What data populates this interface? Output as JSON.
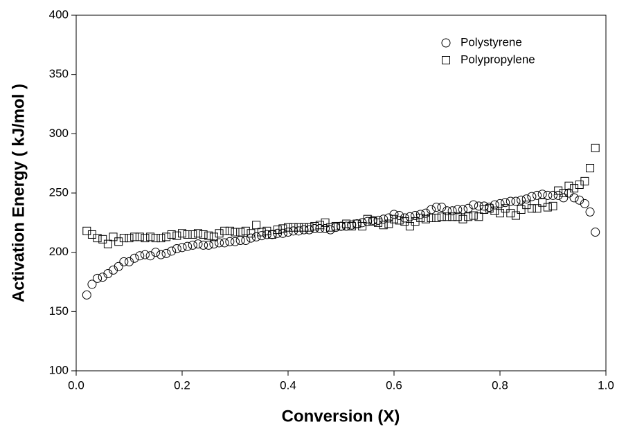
{
  "chart_data": {
    "type": "scatter",
    "x_label": "Conversion (X)",
    "y_label": "Activation Energy ( kJ/mol )",
    "x": [
      0.02,
      0.03,
      0.04,
      0.05,
      0.06,
      0.07,
      0.08,
      0.09,
      0.1,
      0.11,
      0.12,
      0.13,
      0.14,
      0.15,
      0.16,
      0.17,
      0.18,
      0.19,
      0.2,
      0.21,
      0.22,
      0.23,
      0.24,
      0.25,
      0.26,
      0.27,
      0.28,
      0.29,
      0.3,
      0.31,
      0.32,
      0.33,
      0.34,
      0.35,
      0.36,
      0.37,
      0.38,
      0.39,
      0.4,
      0.41,
      0.42,
      0.43,
      0.44,
      0.45,
      0.46,
      0.47,
      0.48,
      0.49,
      0.5,
      0.51,
      0.52,
      0.53,
      0.54,
      0.55,
      0.56,
      0.57,
      0.58,
      0.59,
      0.6,
      0.61,
      0.62,
      0.63,
      0.64,
      0.65,
      0.66,
      0.67,
      0.68,
      0.69,
      0.7,
      0.71,
      0.72,
      0.73,
      0.74,
      0.75,
      0.76,
      0.77,
      0.78,
      0.79,
      0.8,
      0.81,
      0.82,
      0.83,
      0.84,
      0.85,
      0.86,
      0.87,
      0.88,
      0.89,
      0.9,
      0.91,
      0.92,
      0.93,
      0.94,
      0.95,
      0.96,
      0.97,
      0.98
    ],
    "series": [
      {
        "name": "Polystyrene",
        "marker": "circle",
        "color": "#000000",
        "values": [
          164,
          173,
          178,
          179,
          182,
          185,
          188,
          192,
          192,
          195,
          197,
          198,
          197,
          200,
          198,
          199,
          201,
          203,
          204,
          205,
          206,
          207,
          206,
          206,
          207,
          208,
          208,
          209,
          209,
          210,
          210,
          212,
          213,
          214,
          215,
          215,
          216,
          216,
          217,
          218,
          218,
          219,
          219,
          220,
          220,
          220,
          219,
          221,
          222,
          222,
          223,
          224,
          225,
          226,
          227,
          227,
          228,
          229,
          232,
          231,
          229,
          230,
          231,
          232,
          233,
          236,
          238,
          238,
          235,
          235,
          236,
          236,
          237,
          240,
          239,
          239,
          238,
          240,
          241,
          242,
          243,
          243,
          244,
          245,
          247,
          248,
          249,
          248,
          248,
          248,
          246,
          250,
          246,
          244,
          241,
          234,
          217
        ]
      },
      {
        "name": "Polypropylene",
        "marker": "square",
        "color": "#000000",
        "values": [
          218,
          215,
          212,
          211,
          207,
          213,
          209,
          212,
          212,
          213,
          213,
          212,
          213,
          212,
          212,
          213,
          215,
          214,
          216,
          215,
          215,
          216,
          215,
          214,
          213,
          216,
          218,
          218,
          217,
          217,
          218,
          216,
          223,
          217,
          218,
          215,
          219,
          220,
          221,
          221,
          221,
          221,
          221,
          222,
          223,
          225,
          221,
          222,
          222,
          224,
          222,
          224,
          222,
          228,
          226,
          225,
          223,
          224,
          228,
          227,
          226,
          222,
          226,
          229,
          228,
          229,
          229,
          230,
          230,
          230,
          230,
          228,
          230,
          231,
          230,
          236,
          237,
          235,
          233,
          237,
          233,
          231,
          236,
          240,
          237,
          237,
          242,
          238,
          239,
          252,
          250,
          256,
          254,
          257,
          260,
          271,
          288
        ]
      }
    ],
    "xlim": [
      0,
      1
    ],
    "ylim": [
      100,
      400
    ],
    "xticks": [
      {
        "value": 0,
        "label": "0.0"
      },
      0.2,
      0.4,
      0.6,
      0.8,
      {
        "value": 1,
        "label": "1.0"
      }
    ],
    "yticks": [
      100,
      150,
      200,
      250,
      300,
      350,
      400
    ],
    "legend": "upper right"
  }
}
